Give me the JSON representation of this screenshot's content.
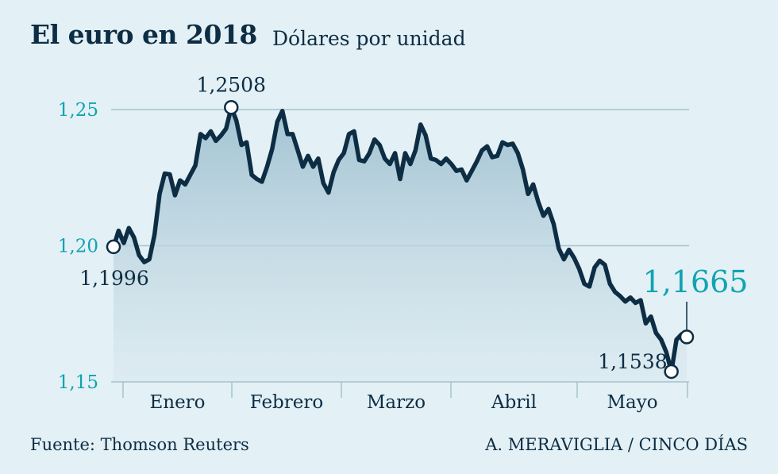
{
  "header": {
    "title": "El euro en 2018",
    "subtitle": "Dólares por unidad"
  },
  "footer": {
    "source": "Fuente: Thomson Reuters",
    "credit": "A. MERAVIGLIA / CINCO DÍAS"
  },
  "colors": {
    "line": "#0d2d44",
    "accent": "#11a3b0",
    "grid": "#a7c2cc",
    "background": "#e3f0f5"
  },
  "chart_data": {
    "type": "area",
    "title": "El euro en 2018",
    "subtitle": "Dólares por unidad",
    "ylim": [
      1.15,
      1.25
    ],
    "y_ticks": [
      {
        "value": 1.25,
        "label": "1,25"
      },
      {
        "value": 1.2,
        "label": "1,20"
      },
      {
        "value": 1.15,
        "label": "1,15"
      }
    ],
    "months": [
      "Enero",
      "Febrero",
      "Marzo",
      "Abril",
      "Mayo"
    ],
    "grid": true,
    "values": [
      1.1996,
      1.2055,
      1.201,
      1.2065,
      1.203,
      1.1965,
      1.194,
      1.195,
      1.204,
      1.219,
      1.2265,
      1.2262,
      1.2185,
      1.224,
      1.2225,
      1.226,
      1.2295,
      1.241,
      1.2395,
      1.242,
      1.2385,
      1.2405,
      1.243,
      1.2508,
      1.246,
      1.237,
      1.238,
      1.226,
      1.2245,
      1.2235,
      1.229,
      1.2355,
      1.2455,
      1.2495,
      1.241,
      1.241,
      1.235,
      1.229,
      1.233,
      1.229,
      1.232,
      1.223,
      1.2195,
      1.227,
      1.2315,
      1.234,
      1.241,
      1.242,
      1.2315,
      1.231,
      1.234,
      1.239,
      1.237,
      1.232,
      1.23,
      1.234,
      1.2245,
      1.234,
      1.23,
      1.235,
      1.2445,
      1.2405,
      1.232,
      1.2315,
      1.23,
      1.232,
      1.23,
      1.2275,
      1.228,
      1.224,
      1.2275,
      1.231,
      1.235,
      1.2365,
      1.2325,
      1.233,
      1.238,
      1.237,
      1.2375,
      1.234,
      1.228,
      1.219,
      1.2225,
      1.216,
      1.211,
      1.2135,
      1.208,
      1.199,
      1.195,
      1.1985,
      1.1955,
      1.1915,
      1.186,
      1.185,
      1.192,
      1.1945,
      1.193,
      1.186,
      1.183,
      1.1815,
      1.1795,
      1.181,
      1.179,
      1.18,
      1.1715,
      1.174,
      1.168,
      1.1655,
      1.161,
      1.1538,
      1.1655,
      1.1675,
      1.1665
    ],
    "annotations": [
      {
        "label": "1,1996",
        "value": 1.1996,
        "role": "start"
      },
      {
        "label": "1,2508",
        "value": 1.2508,
        "role": "max"
      },
      {
        "label": "1,1538",
        "value": 1.1538,
        "role": "min"
      },
      {
        "label": "1,1665",
        "value": 1.1665,
        "role": "last"
      }
    ]
  }
}
